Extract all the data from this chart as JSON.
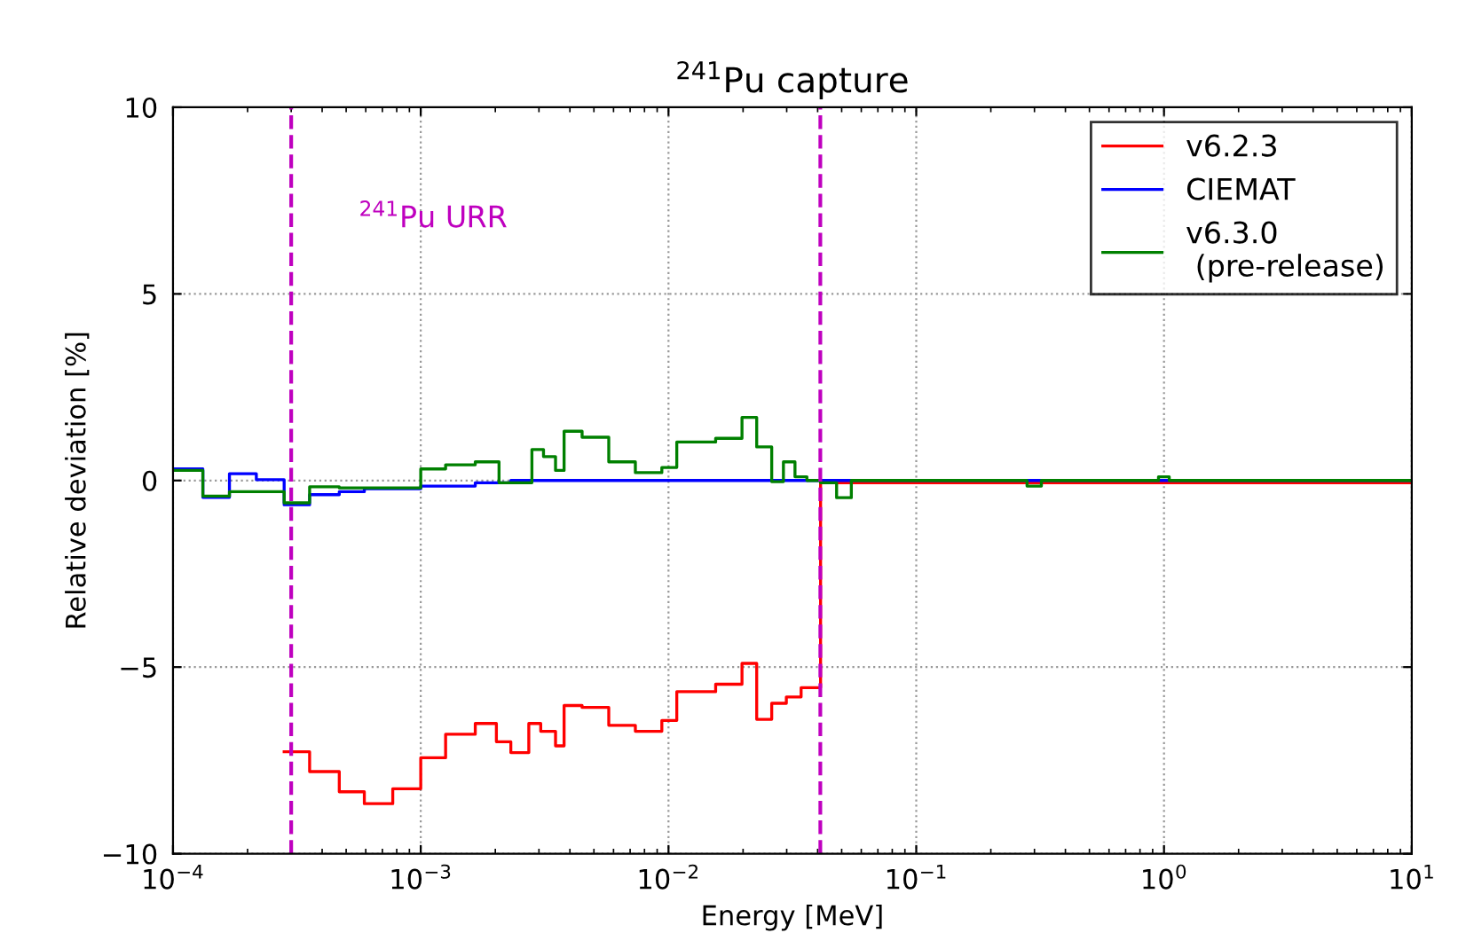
{
  "chart_data": {
    "type": "step",
    "title": "$^{241}$Pu capture",
    "xlabel": "Energy [MeV]",
    "ylabel": "Relative deviation [%]",
    "log": "x",
    "xlim": [
      0.0001,
      10
    ],
    "ylim": [
      -10,
      10
    ],
    "xticks": [
      {
        "value": 0.0001,
        "label": "10$^{−4}$"
      },
      {
        "value": 0.001,
        "label": "10$^{−3}$"
      },
      {
        "value": 0.01,
        "label": "10$^{−2}$"
      },
      {
        "value": 0.1,
        "label": "10$^{−1}$"
      },
      {
        "value": 1,
        "label": "10$^{0}$"
      },
      {
        "value": 10,
        "label": "10$^{1}$"
      }
    ],
    "yticks": [
      {
        "value": -10,
        "label": "−10"
      },
      {
        "value": -5,
        "label": "−5"
      },
      0,
      5,
      10
    ],
    "grid": true,
    "legend": "top right",
    "line_style": "solid",
    "annotations": [
      "$^{241}$Pu URR"
    ],
    "ref_lines": [
      {
        "axis": "x",
        "value": 0.0003,
        "label": null,
        "color": "#bf00bf",
        "line_style": "dashed"
      },
      {
        "axis": "x",
        "value": 0.041,
        "label": null,
        "color": "#bf00bf",
        "line_style": "dashed"
      }
    ],
    "series": [
      {
        "name": "v6.2.3",
        "color": "#ff0000",
        "x": [
          0.000281,
          0.000356,
          0.000469,
          0.000592,
          0.000771,
          0.001,
          0.00126,
          0.00166,
          0.00202,
          0.00231,
          0.00273,
          0.00305,
          0.0035,
          0.00379,
          0.00448,
          0.00574,
          0.00735,
          0.0094,
          0.0108,
          0.0155,
          0.0198,
          0.0227,
          0.0261,
          0.0299,
          0.0343,
          0.0411,
          10
        ],
        "values": [
          -7.27,
          -7.8,
          -8.34,
          -8.66,
          -8.26,
          -7.43,
          -6.8,
          -6.51,
          -7.0,
          -7.29,
          -6.51,
          -6.72,
          -7.11,
          -6.03,
          -6.08,
          -6.56,
          -6.72,
          -6.43,
          -5.66,
          -5.46,
          -4.9,
          -6.4,
          -5.97,
          -5.8,
          -5.55,
          -0.06,
          -0.06
        ]
      },
      {
        "name": "CIEMAT",
        "color": "#0000ff",
        "x": [
          0.0001,
          0.000132,
          0.000169,
          0.000217,
          0.000281,
          0.000356,
          0.000469,
          0.000592,
          0.001,
          0.00166,
          0.00231,
          10
        ],
        "values": [
          0.31,
          -0.45,
          0.18,
          0.02,
          -0.65,
          -0.38,
          -0.3,
          -0.22,
          -0.15,
          -0.06,
          0,
          0
        ]
      },
      {
        "name": "v6.3.0\n (pre-release)",
        "color": "#008000",
        "x": [
          0.0001,
          0.000132,
          0.000169,
          0.000281,
          0.000356,
          0.000469,
          0.001,
          0.00126,
          0.00166,
          0.00207,
          0.00281,
          0.00313,
          0.0035,
          0.00379,
          0.00448,
          0.00574,
          0.00735,
          0.0094,
          0.0108,
          0.0155,
          0.0198,
          0.0227,
          0.0261,
          0.0291,
          0.0324,
          0.0362,
          0.0411,
          0.0477,
          0.0547,
          0.28,
          0.32,
          0.95,
          1.05,
          10
        ],
        "values": [
          0.27,
          -0.42,
          -0.3,
          -0.6,
          -0.17,
          -0.2,
          0.31,
          0.42,
          0.5,
          -0.06,
          0.83,
          0.64,
          0.27,
          1.32,
          1.16,
          0.5,
          0.21,
          0.35,
          1.03,
          1.13,
          1.69,
          0.9,
          -0.03,
          0.5,
          0.1,
          0,
          -0.06,
          -0.46,
          0,
          -0.15,
          0,
          0.1,
          0,
          0
        ]
      }
    ]
  }
}
